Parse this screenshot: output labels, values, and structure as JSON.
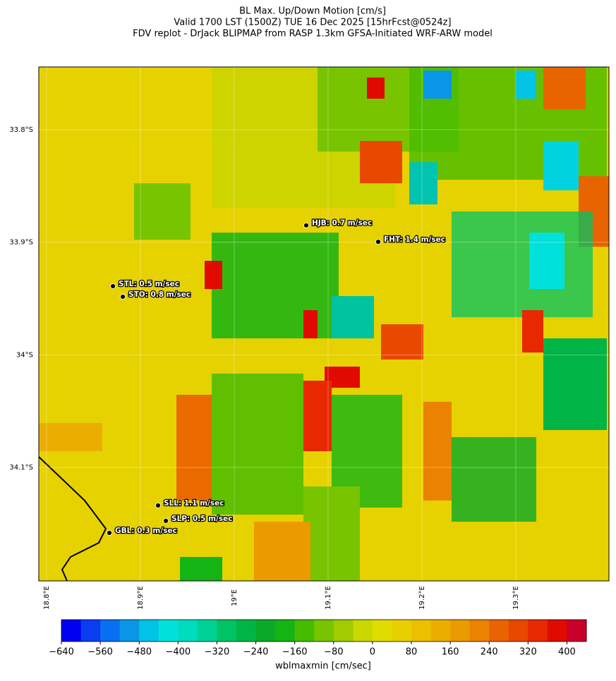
{
  "chart_data": {
    "type": "map",
    "title": "BL Max. Up/Down Motion [cm/s]",
    "subtitle": "Valid 1700 LST (1500Z) TUE 16 Dec 2025 [15hrFcst@0524z]",
    "subtitle2": "FDV replot - DrJack BLIPMAP from RASP 1.3km GFSA-Initiated WRF-ARW model",
    "xlim": [
      18.7917,
      19.3993
    ],
    "ylim": [
      -34.2008,
      -33.7443
    ],
    "xticks": [
      {
        "value": 18.8,
        "label": "18.8°E"
      },
      {
        "value": 18.9,
        "label": "18.9°E"
      },
      {
        "value": 19.0,
        "label": "19°E"
      },
      {
        "value": 19.1,
        "label": "19.1°E"
      },
      {
        "value": 19.2,
        "label": "19.2°E"
      },
      {
        "value": 19.3,
        "label": "19.3°E"
      }
    ],
    "yticks": [
      {
        "value": -33.8,
        "label": "33.8°S"
      },
      {
        "value": -33.9,
        "label": "33.9°S"
      },
      {
        "value": -34.0,
        "label": "34°S"
      },
      {
        "value": -34.1,
        "label": "34.1°S"
      }
    ],
    "stations": [
      {
        "label": "HJB: 0.7 m/sec",
        "lon": 19.0767,
        "lat": -33.885
      },
      {
        "label": "FHT: 1.4 m/sec",
        "lon": 19.1534,
        "lat": -33.8996
      },
      {
        "label": "STL: 0.5 m/sec",
        "lon": 18.8707,
        "lat": -33.939
      },
      {
        "label": "STO: 0.8 m/sec",
        "lon": 18.8812,
        "lat": -33.9484
      },
      {
        "label": "SLL: 1.1 m/sec",
        "lon": 18.9188,
        "lat": -34.1338
      },
      {
        "label": "SLP: 0.5 m/sec",
        "lon": 18.9271,
        "lat": -34.1475
      },
      {
        "label": "GBL: 0.3 m/sec",
        "lon": 18.8669,
        "lat": -34.1582
      }
    ],
    "colorbar": {
      "label": "wblmaxmin [cm/sec]",
      "clim": [
        -640,
        440
      ],
      "colors": [
        "#0000f0",
        "#0a3cf0",
        "#0a6ef0",
        "#0a96e6",
        "#00c3e6",
        "#00e1dc",
        "#00dcbe",
        "#00d296",
        "#00c364",
        "#00b446",
        "#0aaa28",
        "#14b414",
        "#46bc00",
        "#78c400",
        "#a0cc00",
        "#c8d800",
        "#e1dc00",
        "#e8d000",
        "#ebc000",
        "#ebae00",
        "#eb9a00",
        "#eb8200",
        "#e86400",
        "#e84800",
        "#e82800",
        "#e00a00",
        "#c8002a"
      ],
      "ticks": [
        {
          "value": -640,
          "label": "−640"
        },
        {
          "value": -560,
          "label": "−560"
        },
        {
          "value": -480,
          "label": "−480"
        },
        {
          "value": -400,
          "label": "−400"
        },
        {
          "value": -320,
          "label": "−320"
        },
        {
          "value": -240,
          "label": "−240"
        },
        {
          "value": -160,
          "label": "−160"
        },
        {
          "value": -80,
          "label": "−80"
        },
        0,
        80,
        160,
        240,
        320,
        400
      ]
    }
  }
}
